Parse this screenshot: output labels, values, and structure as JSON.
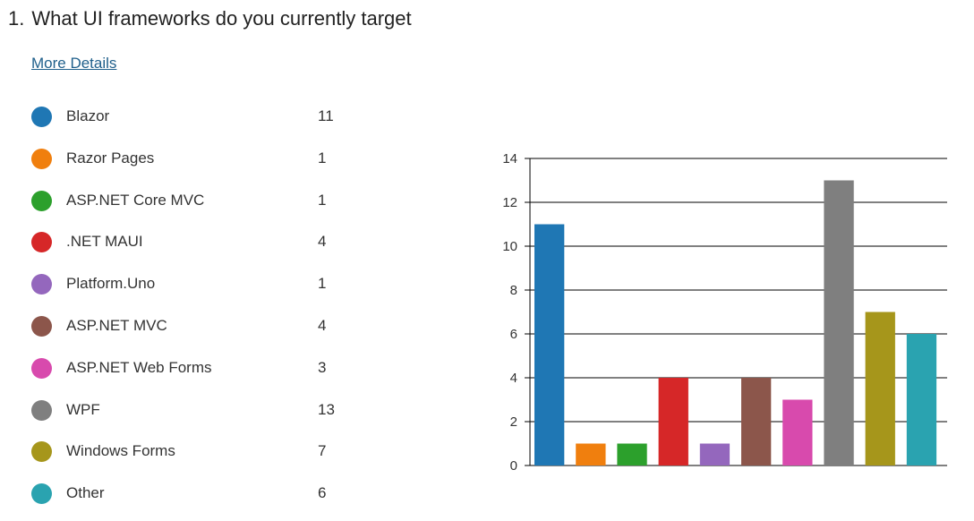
{
  "question": {
    "number": "1.",
    "title": "What UI frameworks do you currently target"
  },
  "more_details_label": "More Details",
  "legend": [
    {
      "label": "Blazor",
      "count": "11",
      "color": "#1f77b4"
    },
    {
      "label": "Razor Pages",
      "count": "1",
      "color": "#f07f0e"
    },
    {
      "label": "ASP.NET Core MVC",
      "count": "1",
      "color": "#2ca02c"
    },
    {
      "label": ".NET MAUI",
      "count": "4",
      "color": "#d62728"
    },
    {
      "label": "Platform.Uno",
      "count": "1",
      "color": "#9467bd"
    },
    {
      "label": "ASP.NET MVC",
      "count": "4",
      "color": "#8c564b"
    },
    {
      "label": "ASP.NET Web Forms",
      "count": "3",
      "color": "#d84aad"
    },
    {
      "label": "WPF",
      "count": "13",
      "color": "#7f7f7f"
    },
    {
      "label": "Windows Forms",
      "count": "7",
      "color": "#a6961b"
    },
    {
      "label": "Other",
      "count": "6",
      "color": "#2aa3b0"
    }
  ],
  "chart_data": {
    "type": "bar",
    "categories": [
      "Blazor",
      "Razor Pages",
      "ASP.NET Core MVC",
      ".NET MAUI",
      "Platform.Uno",
      "ASP.NET MVC",
      "ASP.NET Web Forms",
      "WPF",
      "Windows Forms",
      "Other"
    ],
    "values": [
      11,
      1,
      1,
      4,
      1,
      4,
      3,
      13,
      7,
      6
    ],
    "colors": [
      "#1f77b4",
      "#f07f0e",
      "#2ca02c",
      "#d62728",
      "#9467bd",
      "#8c564b",
      "#d84aad",
      "#7f7f7f",
      "#a6961b",
      "#2aa3b0"
    ],
    "ylim": [
      0,
      14
    ],
    "yticks": [
      "0",
      "2",
      "4",
      "6",
      "8",
      "10",
      "12",
      "14"
    ],
    "grid": true,
    "legend": "left",
    "title": "",
    "xlabel": "",
    "ylabel": ""
  }
}
